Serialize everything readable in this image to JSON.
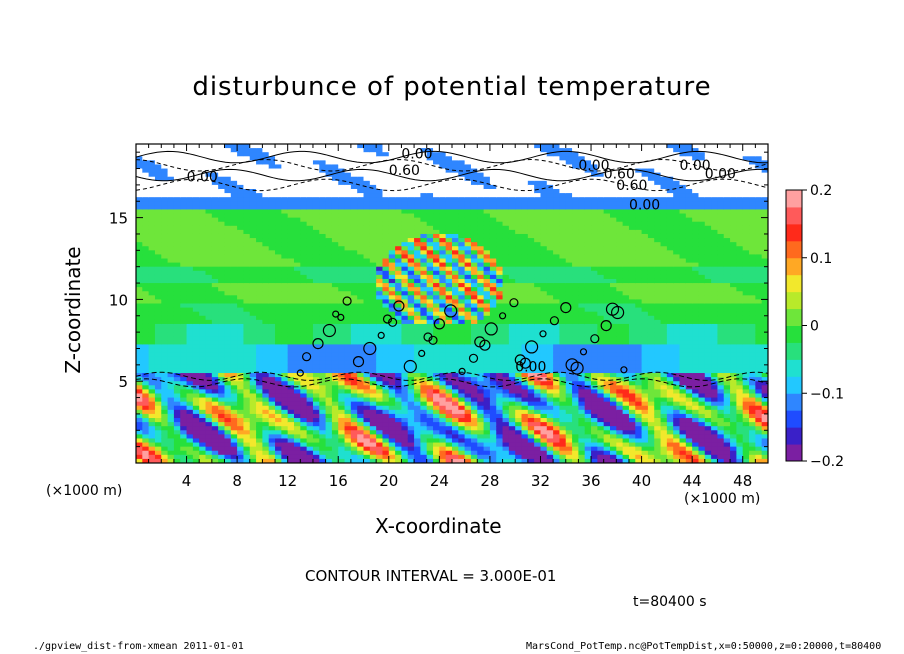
{
  "chart_data": {
    "type": "heatmap",
    "title": "disturbunce of potential temperature",
    "xlabel": "X-coordinate",
    "ylabel": "Z-coordinate",
    "x_unit": "(×1000 m)",
    "y_unit": "(×1000 m)",
    "xlim": [
      0,
      50
    ],
    "ylim": [
      0,
      19.5
    ],
    "x_ticks": [
      4,
      8,
      12,
      16,
      20,
      24,
      28,
      32,
      36,
      40,
      44,
      48
    ],
    "y_ticks": [
      5,
      10,
      15
    ],
    "colorbar": {
      "range": [
        -0.2,
        0.2
      ],
      "ticks": [
        "0.2",
        "0.1",
        "0",
        "−0.1",
        "−0.2"
      ],
      "colors": [
        "#7b1fa2",
        "#3a20c8",
        "#1f4cff",
        "#2f86ff",
        "#22c8ff",
        "#1fe0d0",
        "#28e07c",
        "#26e03c",
        "#6ee63a",
        "#b8ea2a",
        "#f2e82c",
        "#ffa824",
        "#ff6a1e",
        "#ff2a1a",
        "#ff5a5a",
        "#ffa0a0"
      ]
    },
    "contour_labels": [
      "0.00",
      "0.60",
      "0.00",
      "0.00",
      "0.60",
      "0.00",
      "0.60",
      "0.00",
      "0.00",
      "0.00"
    ],
    "contour_interval_text": "CONTOUR INTERVAL = 3.000E-01",
    "time_text": "t=80400 s"
  },
  "footer": {
    "left": "./gpview_dist-from-xmean  2011-01-01",
    "right": "MarsCond_PotTemp.nc@PotTempDist,x=0:50000,z=0:20000,t=80400"
  }
}
